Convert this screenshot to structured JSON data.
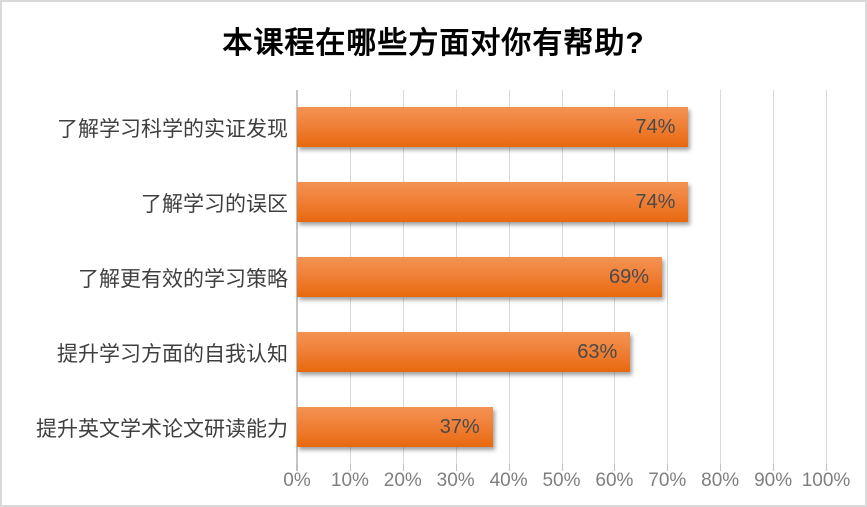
{
  "chart_data": {
    "type": "bar",
    "orientation": "horizontal",
    "title": "本课程在哪些方面对你有帮助?",
    "categories": [
      "了解学习科学的实证发现",
      "了解学习的误区",
      "了解更有效的学习策略",
      "提升学习方面的自我认知",
      "提升英文学术论文研读能力"
    ],
    "values": [
      74,
      74,
      69,
      63,
      37
    ],
    "value_labels": [
      "74%",
      "74%",
      "69%",
      "63%",
      "37%"
    ],
    "xlabel": "",
    "ylabel": "",
    "xlim": [
      0,
      100
    ],
    "x_tick_step": 10,
    "x_ticks": [
      "0%",
      "10%",
      "20%",
      "30%",
      "40%",
      "50%",
      "60%",
      "70%",
      "80%",
      "90%",
      "100%"
    ],
    "grid": "vertical-only",
    "legend": "none",
    "colors": {
      "bar_gradient_top": "#F49353",
      "bar_gradient_bottom": "#E8690D",
      "gridline": "#D9D9D9",
      "axis_line": "#C6C6C6",
      "title_text": "#000000",
      "category_text": "#3F3F3F",
      "value_label_text": "#4A4A4A",
      "tick_label_text": "#7F7F7F",
      "frame_border": "#D9D9D9",
      "background": "#FFFFFF"
    }
  }
}
